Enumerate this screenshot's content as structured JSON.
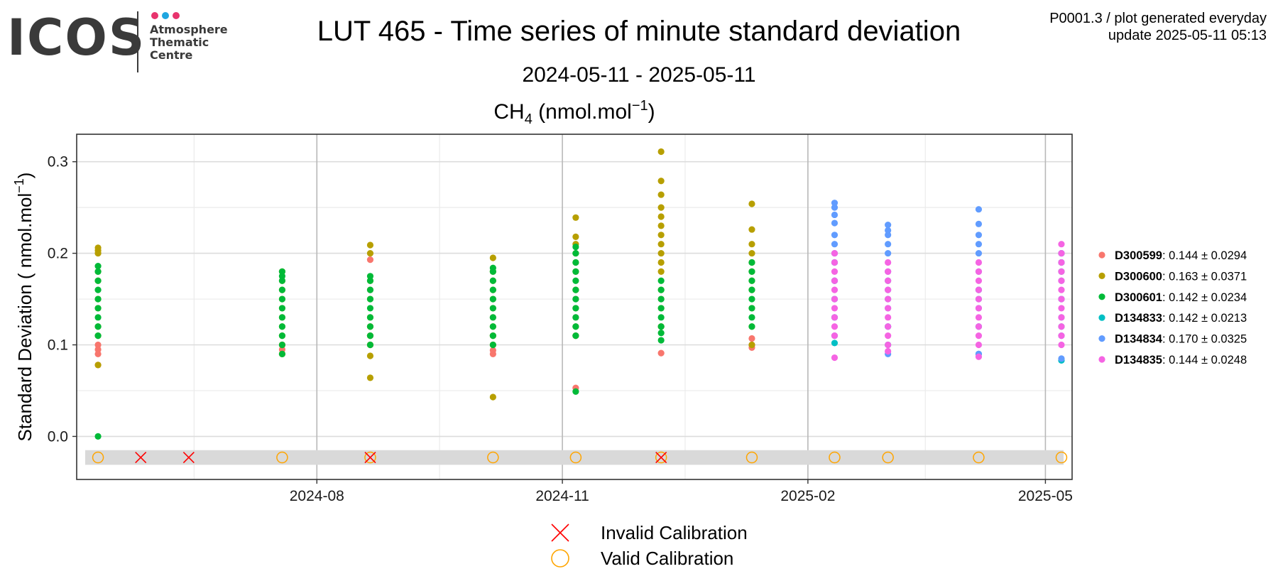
{
  "header": {
    "logo": {
      "word": "ICOS",
      "lines": [
        "Atmosphere",
        "Thematic",
        "Centre"
      ],
      "dot_colors": [
        "#e8336d",
        "#1ea6e0",
        "#e8336d"
      ]
    },
    "title": "LUT 465 - Time series of minute standard deviation",
    "subtitle": "2024-05-11 - 2025-05-11",
    "corner_line1": "P0001.3 / plot generated everyday",
    "corner_line2": "update  2025-05-11 05:13"
  },
  "chart_data": {
    "type": "scatter",
    "title": "CH",
    "title_subscript": "4",
    "title_unit": "(nmol.mol",
    "title_unit_exp": "−1",
    "title_unit_close": ")",
    "ylabel": "Standard Deviation ( nmol.mol",
    "ylabel_exp": "−1",
    "ylabel_close": ")",
    "xlim": [
      "2024-05-03",
      "2025-05-11"
    ],
    "ylim": [
      -0.047,
      0.33
    ],
    "x_ticks": [
      "2024-08-01",
      "2024-11-01",
      "2025-02-01",
      "2025-05-01"
    ],
    "x_tick_labels": [
      "2024-08",
      "2024-11",
      "2025-02",
      "2025-05"
    ],
    "y_ticks": [
      0.0,
      0.1,
      0.2,
      0.3
    ],
    "y_tick_labels": [
      "0.0",
      "0.1",
      "0.2",
      "0.3"
    ],
    "grid": true,
    "legend_position": "right",
    "band_color": "#d9d9d9",
    "series": [
      {
        "name": "D300599",
        "stats": ": 0.144 ± 0.0294",
        "color": "#f8766d",
        "groups": [
          {
            "date": "2024-05-11",
            "values": [
              0.078,
              0.09,
              0.095,
              0.1
            ]
          },
          {
            "date": "2024-07-19",
            "values": [
              0.09,
              0.095,
              0.1
            ]
          },
          {
            "date": "2024-08-21",
            "values": [
              0.1,
              0.11,
              0.12,
              0.16,
              0.193
            ]
          },
          {
            "date": "2024-10-06",
            "values": [
              0.09,
              0.094,
              0.11,
              0.13
            ]
          },
          {
            "date": "2024-11-06",
            "values": [
              0.053,
              0.11,
              0.13,
              0.15
            ]
          },
          {
            "date": "2024-12-08",
            "values": [
              0.091,
              0.12,
              0.15
            ]
          },
          {
            "date": "2025-01-11",
            "values": [
              0.097,
              0.1,
              0.107
            ]
          }
        ]
      },
      {
        "name": "D300600",
        "stats": ": 0.163 ± 0.0371",
        "color": "#b79f00",
        "groups": [
          {
            "date": "2024-05-11",
            "values": [
              0.078,
              0.11,
              0.12,
              0.14,
              0.15,
              0.17,
              0.18,
              0.2,
              0.203,
              0.206
            ]
          },
          {
            "date": "2024-07-19",
            "values": [
              0.09,
              0.1,
              0.11,
              0.12,
              0.13,
              0.14,
              0.15,
              0.16,
              0.17,
              0.18
            ]
          },
          {
            "date": "2024-08-21",
            "values": [
              0.064,
              0.088,
              0.1,
              0.11,
              0.12,
              0.13,
              0.15,
              0.17,
              0.2,
              0.209
            ]
          },
          {
            "date": "2024-10-06",
            "values": [
              0.043,
              0.1,
              0.11,
              0.12,
              0.14,
              0.15,
              0.16,
              0.17,
              0.18,
              0.195
            ]
          },
          {
            "date": "2024-11-06",
            "values": [
              0.11,
              0.12,
              0.14,
              0.16,
              0.18,
              0.19,
              0.2,
              0.21,
              0.218,
              0.239
            ]
          },
          {
            "date": "2024-12-08",
            "values": [
              0.12,
              0.14,
              0.16,
              0.18,
              0.19,
              0.2,
              0.21,
              0.22,
              0.23,
              0.24,
              0.25,
              0.264,
              0.279,
              0.311
            ]
          },
          {
            "date": "2025-01-11",
            "values": [
              0.1,
              0.12,
              0.14,
              0.16,
              0.17,
              0.18,
              0.19,
              0.2,
              0.21,
              0.226,
              0.254
            ]
          }
        ]
      },
      {
        "name": "D300601",
        "stats": ": 0.142 ± 0.0234",
        "color": "#00ba38",
        "groups": [
          {
            "date": "2024-05-11",
            "values": [
              0.0,
              0.11,
              0.12,
              0.13,
              0.14,
              0.15,
              0.16,
              0.17,
              0.18,
              0.186
            ]
          },
          {
            "date": "2024-07-19",
            "values": [
              0.09,
              0.1,
              0.11,
              0.12,
              0.13,
              0.14,
              0.15,
              0.16,
              0.17,
              0.175,
              0.18
            ]
          },
          {
            "date": "2024-08-21",
            "values": [
              0.1,
              0.11,
              0.12,
              0.13,
              0.14,
              0.15,
              0.16,
              0.17,
              0.175
            ]
          },
          {
            "date": "2024-10-06",
            "values": [
              0.1,
              0.11,
              0.12,
              0.13,
              0.14,
              0.15,
              0.16,
              0.17,
              0.18,
              0.184
            ]
          },
          {
            "date": "2024-11-06",
            "values": [
              0.049,
              0.11,
              0.12,
              0.13,
              0.14,
              0.15,
              0.16,
              0.17,
              0.18,
              0.19,
              0.2,
              0.207
            ]
          },
          {
            "date": "2024-12-08",
            "values": [
              0.105,
              0.113,
              0.12,
              0.13,
              0.14,
              0.15,
              0.16,
              0.17
            ]
          },
          {
            "date": "2025-01-11",
            "values": [
              0.12,
              0.13,
              0.14,
              0.15,
              0.16,
              0.17,
              0.18,
              0.19
            ]
          }
        ]
      },
      {
        "name": "D134833",
        "stats": ": 0.142 ± 0.0213",
        "color": "#00bfc4",
        "groups": [
          {
            "date": "2025-02-11",
            "values": [
              0.102,
              0.13,
              0.15,
              0.17,
              0.19
            ]
          },
          {
            "date": "2025-03-03",
            "values": [
              0.1,
              0.12,
              0.15,
              0.17
            ]
          },
          {
            "date": "2025-04-06",
            "values": [
              0.09,
              0.12,
              0.15,
              0.16
            ]
          },
          {
            "date": "2025-05-07",
            "values": [
              0.083,
              0.12,
              0.15,
              0.18,
              0.19,
              0.2
            ]
          }
        ]
      },
      {
        "name": "D134834",
        "stats": ": 0.170 ± 0.0325",
        "color": "#619cff",
        "groups": [
          {
            "date": "2025-02-11",
            "values": [
              0.11,
              0.13,
              0.15,
              0.17,
              0.19,
              0.2,
              0.21,
              0.22,
              0.233,
              0.242,
              0.25,
              0.255
            ]
          },
          {
            "date": "2025-03-03",
            "values": [
              0.09,
              0.12,
              0.14,
              0.16,
              0.18,
              0.2,
              0.21,
              0.22,
              0.225,
              0.231
            ]
          },
          {
            "date": "2025-04-06",
            "values": [
              0.09,
              0.12,
              0.14,
              0.16,
              0.18,
              0.2,
              0.21,
              0.22,
              0.232,
              0.248
            ]
          },
          {
            "date": "2025-05-07",
            "values": [
              0.085,
              0.11,
              0.13,
              0.15,
              0.17,
              0.19,
              0.2
            ]
          }
        ]
      },
      {
        "name": "D134835",
        "stats": ": 0.144 ± 0.0248",
        "color": "#f564e3",
        "groups": [
          {
            "date": "2025-02-11",
            "values": [
              0.086,
              0.11,
              0.12,
              0.13,
              0.14,
              0.15,
              0.16,
              0.17,
              0.18,
              0.19,
              0.2
            ]
          },
          {
            "date": "2025-03-03",
            "values": [
              0.093,
              0.1,
              0.11,
              0.12,
              0.13,
              0.14,
              0.15,
              0.16,
              0.17,
              0.18,
              0.19
            ]
          },
          {
            "date": "2025-04-06",
            "values": [
              0.087,
              0.1,
              0.11,
              0.12,
              0.13,
              0.14,
              0.15,
              0.16,
              0.17,
              0.18,
              0.19
            ]
          },
          {
            "date": "2025-05-07",
            "values": [
              0.1,
              0.11,
              0.12,
              0.13,
              0.14,
              0.15,
              0.16,
              0.17,
              0.18,
              0.19,
              0.2,
              0.21
            ]
          }
        ]
      }
    ],
    "calibrations": {
      "y": -0.023,
      "invalid_dates": [
        "2024-05-27",
        "2024-06-14",
        "2024-08-21",
        "2024-12-08"
      ],
      "valid_dates": [
        "2024-05-11",
        "2024-07-19",
        "2024-08-21",
        "2024-10-06",
        "2024-11-06",
        "2024-12-08",
        "2025-01-11",
        "2025-02-11",
        "2025-03-03",
        "2025-04-06",
        "2025-05-07"
      ],
      "invalid_color": "#ff0000",
      "valid_color": "#ffa500"
    },
    "marker_legend": [
      {
        "label": "Invalid Calibration",
        "marker": "cross"
      },
      {
        "label": "Valid Calibration",
        "marker": "circle"
      }
    ]
  }
}
